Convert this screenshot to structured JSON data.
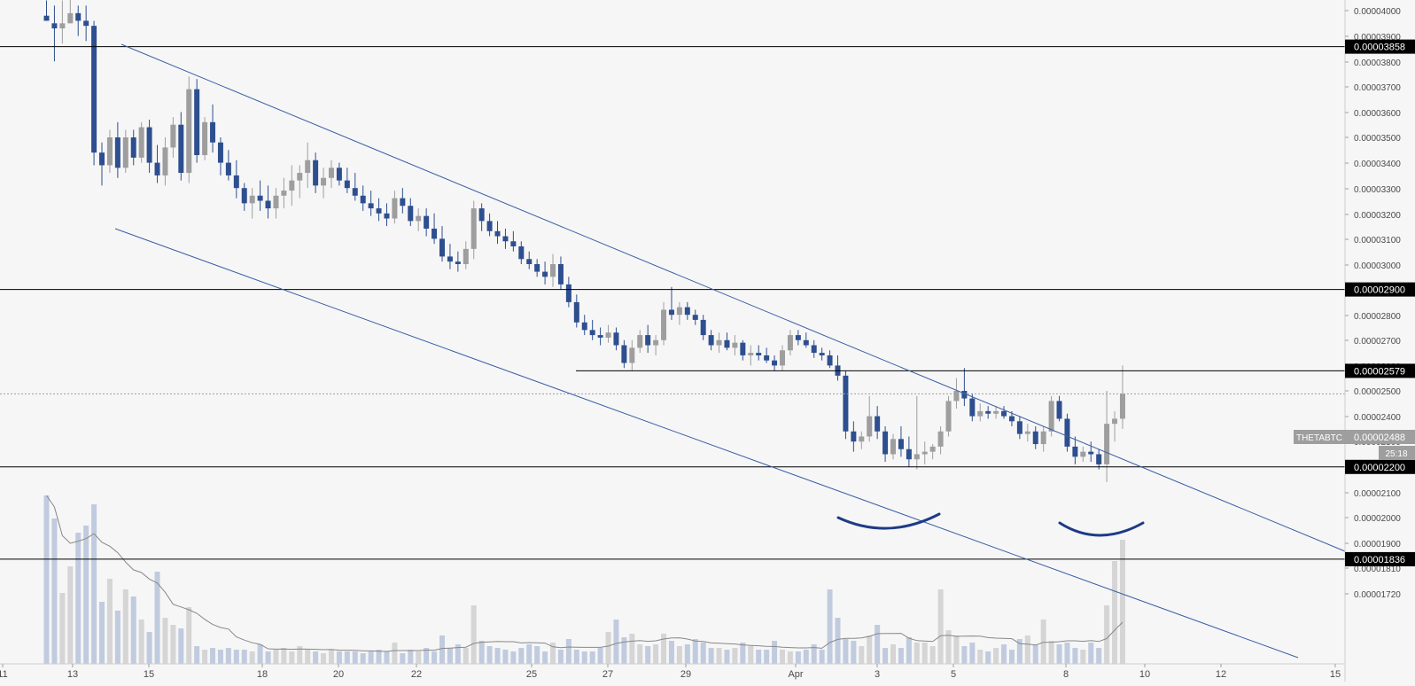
{
  "chart_data": {
    "type": "candlestick",
    "symbol": "THETABTC",
    "last_price": "0.00002488",
    "countdown": "25:18",
    "y_ticks": [
      "0.00004000",
      "0.00003900",
      "0.00003800",
      "0.00003700",
      "0.00003600",
      "0.00003500",
      "0.00003400",
      "0.00003300",
      "0.00003200",
      "0.00003100",
      "0.00003000",
      "0.00002900",
      "0.00002800",
      "0.00002700",
      "0.00002600",
      "0.00002500",
      "0.00002400",
      "0.00002300",
      "0.00002200",
      "0.00002100",
      "0.00002000",
      "0.00001900",
      "0.00001810",
      "0.00001720"
    ],
    "x_ticks": [
      "11",
      "13",
      "15",
      "18",
      "20",
      "22",
      "25",
      "27",
      "29",
      "Apr",
      "3",
      "5",
      "8",
      "10",
      "12",
      "15"
    ],
    "price_lines": [
      {
        "label": "0.00003858",
        "value": 3858,
        "style": "solid"
      },
      {
        "label": "0.00002900",
        "value": 2900,
        "style": "solid"
      },
      {
        "label": "0.00002579",
        "value": 2579,
        "style": "solid"
      },
      {
        "label": "0.00002200",
        "value": 2200,
        "style": "solid"
      },
      {
        "label": "0.00001836",
        "value": 1836,
        "style": "solid"
      },
      {
        "label": "0.00002488",
        "value": 2488,
        "style": "dotted"
      }
    ],
    "colors": {
      "up": "#9e9e9e",
      "down": "#2e4f8f",
      "line": "#000000",
      "channel": "#3b5ea6",
      "arc": "#1d3b86",
      "volume_ma": "#888888"
    },
    "candles_ohlc_x1e8": [
      [
        3980,
        4040,
        3960,
        3960
      ],
      [
        3950,
        4020,
        3800,
        3930
      ],
      [
        3930,
        4040,
        3870,
        3950
      ],
      [
        3950,
        4090,
        3950,
        3990
      ],
      [
        3990,
        4020,
        3900,
        3960
      ],
      [
        3960,
        4020,
        3880,
        3940
      ],
      [
        3940,
        3960,
        3390,
        3440
      ],
      [
        3440,
        3480,
        3310,
        3390
      ],
      [
        3390,
        3530,
        3360,
        3500
      ],
      [
        3500,
        3560,
        3340,
        3380
      ],
      [
        3380,
        3530,
        3360,
        3500
      ],
      [
        3500,
        3530,
        3390,
        3420
      ],
      [
        3420,
        3560,
        3400,
        3540
      ],
      [
        3540,
        3570,
        3360,
        3400
      ],
      [
        3400,
        3470,
        3320,
        3350
      ],
      [
        3350,
        3500,
        3310,
        3460
      ],
      [
        3460,
        3580,
        3420,
        3550
      ],
      [
        3550,
        3600,
        3330,
        3360
      ],
      [
        3360,
        3740,
        3320,
        3690
      ],
      [
        3690,
        3730,
        3400,
        3430
      ],
      [
        3430,
        3580,
        3410,
        3560
      ],
      [
        3560,
        3630,
        3440,
        3480
      ],
      [
        3480,
        3500,
        3350,
        3400
      ],
      [
        3400,
        3450,
        3330,
        3350
      ],
      [
        3350,
        3410,
        3260,
        3300
      ],
      [
        3300,
        3320,
        3210,
        3240
      ],
      [
        3240,
        3300,
        3180,
        3270
      ],
      [
        3270,
        3330,
        3210,
        3250
      ],
      [
        3250,
        3310,
        3180,
        3220
      ],
      [
        3220,
        3300,
        3180,
        3270
      ],
      [
        3270,
        3340,
        3220,
        3290
      ],
      [
        3290,
        3390,
        3230,
        3330
      ],
      [
        3330,
        3390,
        3260,
        3360
      ],
      [
        3360,
        3480,
        3300,
        3410
      ],
      [
        3410,
        3440,
        3280,
        3310
      ],
      [
        3310,
        3380,
        3260,
        3340
      ],
      [
        3340,
        3410,
        3300,
        3380
      ],
      [
        3380,
        3400,
        3310,
        3330
      ],
      [
        3330,
        3380,
        3280,
        3300
      ],
      [
        3300,
        3360,
        3250,
        3270
      ],
      [
        3270,
        3310,
        3210,
        3240
      ],
      [
        3240,
        3290,
        3190,
        3220
      ],
      [
        3220,
        3260,
        3170,
        3200
      ],
      [
        3200,
        3240,
        3150,
        3180
      ],
      [
        3180,
        3290,
        3160,
        3260
      ],
      [
        3260,
        3300,
        3200,
        3230
      ],
      [
        3230,
        3260,
        3150,
        3170
      ],
      [
        3170,
        3220,
        3130,
        3190
      ],
      [
        3190,
        3220,
        3110,
        3140
      ],
      [
        3140,
        3200,
        3080,
        3100
      ],
      [
        3100,
        3150,
        3010,
        3030
      ],
      [
        3030,
        3080,
        2980,
        3010
      ],
      [
        3010,
        3050,
        2970,
        3000
      ],
      [
        3000,
        3090,
        2980,
        3060
      ],
      [
        3060,
        3250,
        3020,
        3220
      ],
      [
        3220,
        3240,
        3130,
        3170
      ],
      [
        3170,
        3200,
        3110,
        3130
      ],
      [
        3130,
        3170,
        3080,
        3110
      ],
      [
        3110,
        3140,
        3060,
        3090
      ],
      [
        3090,
        3130,
        3050,
        3070
      ],
      [
        3070,
        3090,
        3000,
        3020
      ],
      [
        3020,
        3050,
        2980,
        3000
      ],
      [
        3000,
        3020,
        2950,
        2970
      ],
      [
        2970,
        3010,
        2920,
        2950
      ],
      [
        2950,
        3040,
        2910,
        3000
      ],
      [
        3000,
        3030,
        2900,
        2920
      ],
      [
        2920,
        2950,
        2830,
        2850
      ],
      [
        2850,
        2880,
        2750,
        2770
      ],
      [
        2770,
        2800,
        2720,
        2740
      ],
      [
        2740,
        2780,
        2700,
        2720
      ],
      [
        2720,
        2750,
        2680,
        2710
      ],
      [
        2710,
        2760,
        2690,
        2730
      ],
      [
        2730,
        2750,
        2660,
        2680
      ],
      [
        2680,
        2700,
        2590,
        2610
      ],
      [
        2610,
        2700,
        2580,
        2670
      ],
      [
        2670,
        2740,
        2650,
        2720
      ],
      [
        2720,
        2760,
        2650,
        2680
      ],
      [
        2680,
        2720,
        2640,
        2700
      ],
      [
        2700,
        2850,
        2680,
        2820
      ],
      [
        2820,
        2910,
        2780,
        2800
      ],
      [
        2800,
        2850,
        2760,
        2830
      ],
      [
        2830,
        2850,
        2780,
        2800
      ],
      [
        2800,
        2820,
        2760,
        2780
      ],
      [
        2780,
        2800,
        2700,
        2720
      ],
      [
        2720,
        2740,
        2660,
        2680
      ],
      [
        2680,
        2730,
        2650,
        2700
      ],
      [
        2700,
        2730,
        2660,
        2670
      ],
      [
        2670,
        2720,
        2640,
        2690
      ],
      [
        2690,
        2700,
        2620,
        2640
      ],
      [
        2640,
        2680,
        2600,
        2650
      ],
      [
        2650,
        2680,
        2620,
        2640
      ],
      [
        2640,
        2670,
        2610,
        2620
      ],
      [
        2620,
        2640,
        2580,
        2600
      ],
      [
        2600,
        2680,
        2580,
        2660
      ],
      [
        2660,
        2740,
        2640,
        2720
      ],
      [
        2720,
        2740,
        2680,
        2700
      ],
      [
        2700,
        2730,
        2670,
        2680
      ],
      [
        2680,
        2700,
        2630,
        2650
      ],
      [
        2650,
        2670,
        2620,
        2640
      ],
      [
        2640,
        2660,
        2590,
        2600
      ],
      [
        2600,
        2640,
        2540,
        2560
      ],
      [
        2560,
        2580,
        2310,
        2340
      ],
      [
        2340,
        2380,
        2260,
        2300
      ],
      [
        2300,
        2340,
        2270,
        2320
      ],
      [
        2320,
        2480,
        2300,
        2400
      ],
      [
        2400,
        2440,
        2310,
        2340
      ],
      [
        2340,
        2360,
        2220,
        2250
      ],
      [
        2250,
        2330,
        2230,
        2310
      ],
      [
        2310,
        2360,
        2240,
        2270
      ],
      [
        2270,
        2320,
        2200,
        2230
      ],
      [
        2230,
        2480,
        2190,
        2250
      ],
      [
        2250,
        2300,
        2210,
        2260
      ],
      [
        2260,
        2290,
        2230,
        2280
      ],
      [
        2280,
        2360,
        2250,
        2340
      ],
      [
        2340,
        2480,
        2320,
        2460
      ],
      [
        2460,
        2550,
        2430,
        2500
      ],
      [
        2500,
        2590,
        2440,
        2470
      ],
      [
        2470,
        2490,
        2380,
        2400
      ],
      [
        2400,
        2450,
        2380,
        2420
      ],
      [
        2420,
        2440,
        2390,
        2410
      ],
      [
        2410,
        2440,
        2390,
        2420
      ],
      [
        2420,
        2440,
        2390,
        2400
      ],
      [
        2400,
        2420,
        2360,
        2380
      ],
      [
        2380,
        2400,
        2310,
        2330
      ],
      [
        2330,
        2370,
        2300,
        2340
      ],
      [
        2340,
        2360,
        2270,
        2290
      ],
      [
        2290,
        2360,
        2260,
        2340
      ],
      [
        2340,
        2480,
        2320,
        2460
      ],
      [
        2460,
        2480,
        2380,
        2390
      ],
      [
        2390,
        2410,
        2260,
        2280
      ],
      [
        2280,
        2320,
        2210,
        2240
      ],
      [
        2240,
        2280,
        2220,
        2260
      ],
      [
        2260,
        2300,
        2220,
        2250
      ],
      [
        2250,
        2270,
        2190,
        2210
      ],
      [
        2210,
        2500,
        2140,
        2370
      ],
      [
        2370,
        2420,
        2300,
        2390
      ],
      [
        2390,
        2600,
        2350,
        2488
      ]
    ],
    "volume_units": [
      95,
      82,
      40,
      55,
      74,
      78,
      90,
      35,
      48,
      30,
      42,
      38,
      25,
      18,
      52,
      26,
      22,
      20,
      32,
      10,
      8,
      9,
      8,
      9,
      8,
      8,
      7,
      11,
      7,
      8,
      9,
      7,
      10,
      8,
      7,
      6,
      8,
      7,
      7,
      7,
      6,
      7,
      8,
      7,
      12,
      6,
      8,
      7,
      9,
      7,
      16,
      9,
      11,
      9,
      33,
      13,
      10,
      9,
      8,
      7,
      9,
      11,
      10,
      7,
      12,
      8,
      14,
      8,
      7,
      7,
      9,
      18,
      25,
      15,
      17,
      11,
      10,
      11,
      17,
      13,
      10,
      11,
      14,
      12,
      9,
      9,
      8,
      9,
      12,
      10,
      8,
      8,
      13,
      8,
      7,
      7,
      8,
      11,
      8,
      42,
      26,
      14,
      13,
      10,
      16,
      22,
      9,
      11,
      9,
      15,
      12,
      12,
      10,
      42,
      19,
      16,
      10,
      12,
      8,
      7,
      9,
      11,
      8,
      14,
      16,
      11,
      25,
      13,
      11,
      12,
      9,
      8,
      12,
      9,
      33,
      58,
      70
    ],
    "annotations": [
      "descending-channel",
      "cup-arc-1",
      "cup-arc-2"
    ]
  }
}
